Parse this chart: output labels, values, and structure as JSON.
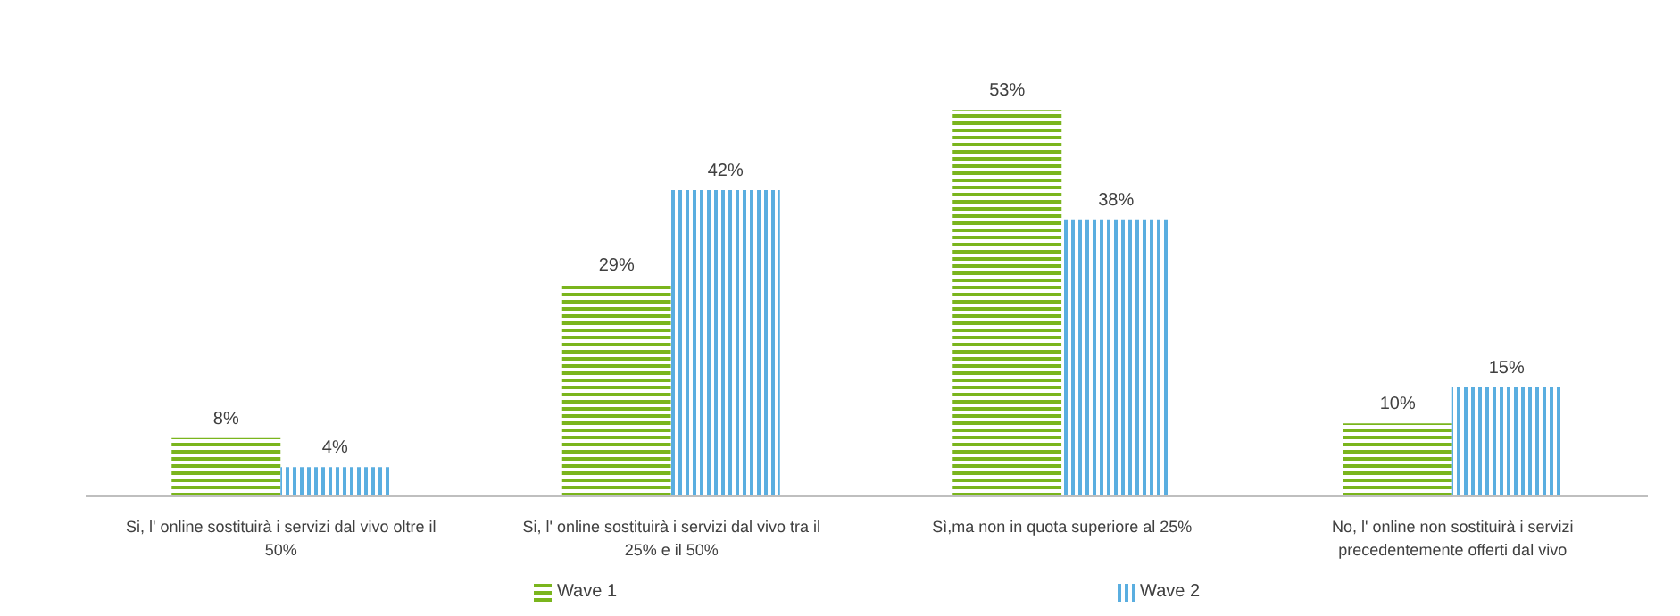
{
  "chart_data": {
    "type": "bar",
    "categories": [
      "Si, l' online sostituirà i servizi dal vivo oltre il 50%",
      "Si, l' online sostituirà i servizi dal vivo tra il 25% e il 50%",
      "Sì,ma non in quota superiore al 25%",
      "No, l' online non sostituirà i servizi precedentemente offerti dal vivo"
    ],
    "series": [
      {
        "name": "Wave 1",
        "color": "#7ab51d",
        "values": [
          8,
          29,
          53,
          10
        ],
        "value_labels": [
          "8%",
          "29%",
          "53%",
          "10%"
        ]
      },
      {
        "name": "Wave 2",
        "color": "#5aaee0",
        "values": [
          4,
          42,
          38,
          15
        ],
        "value_labels": [
          "4%",
          "42%",
          "38%",
          "15%"
        ]
      }
    ],
    "legend": "bottom",
    "grid": false
  }
}
